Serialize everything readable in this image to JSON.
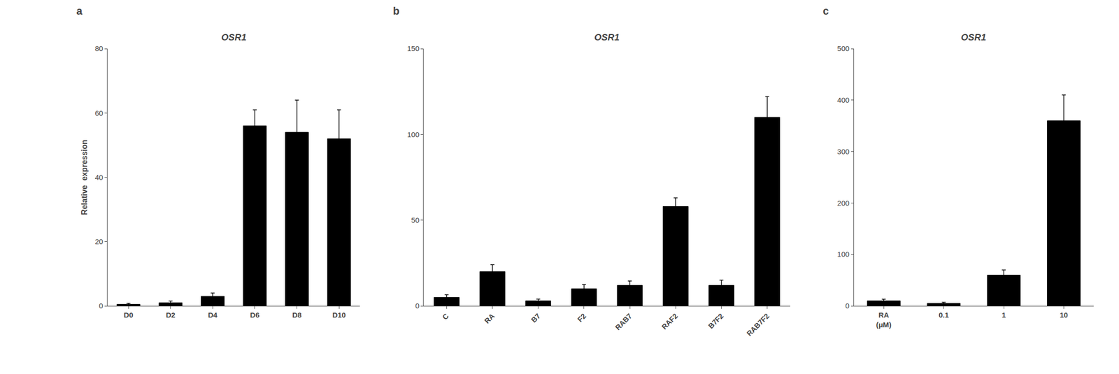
{
  "chart_data": [
    {
      "type": "bar",
      "title": "OSR1",
      "annotations": [
        "a"
      ],
      "ylabel": "Relative  expression",
      "categories": [
        "D0",
        "D2",
        "D4",
        "D6",
        "D8",
        "D10"
      ],
      "values": [
        0.5,
        1.0,
        3.0,
        56.0,
        54.0,
        52.0
      ],
      "errors": [
        0.3,
        0.5,
        1.0,
        5.0,
        10.0,
        9.0
      ],
      "color": "#000000",
      "ylim": [
        0,
        80
      ],
      "yticks": [
        0,
        20,
        40,
        60,
        80
      ],
      "grid": false
    },
    {
      "type": "bar",
      "title": "OSR1",
      "annotations": [
        "b"
      ],
      "categories": [
        "C",
        "RA",
        "B7",
        "F2",
        "RAB7",
        "RAF2",
        "B7F2",
        "RAB7F2"
      ],
      "values": [
        5.0,
        20.0,
        3.0,
        10.0,
        12.0,
        58.0,
        12.0,
        110.0
      ],
      "errors": [
        1.5,
        4.0,
        1.0,
        2.5,
        2.5,
        5.0,
        3.0,
        12.0
      ],
      "color": "#000000",
      "ylim": [
        0,
        150
      ],
      "yticks": [
        0,
        50,
        100,
        150
      ],
      "grid": false
    },
    {
      "type": "bar",
      "title": "OSR1",
      "annotations": [
        "c"
      ],
      "categories": [
        "RA\n(μM)",
        "0.1",
        "1",
        "10"
      ],
      "values": [
        10.0,
        5.0,
        60.0,
        360.0
      ],
      "errors": [
        3.0,
        2.0,
        10.0,
        50.0
      ],
      "color": "#000000",
      "ylim": [
        0,
        500
      ],
      "yticks": [
        0,
        100,
        200,
        300,
        400,
        500
      ],
      "grid": false
    }
  ]
}
